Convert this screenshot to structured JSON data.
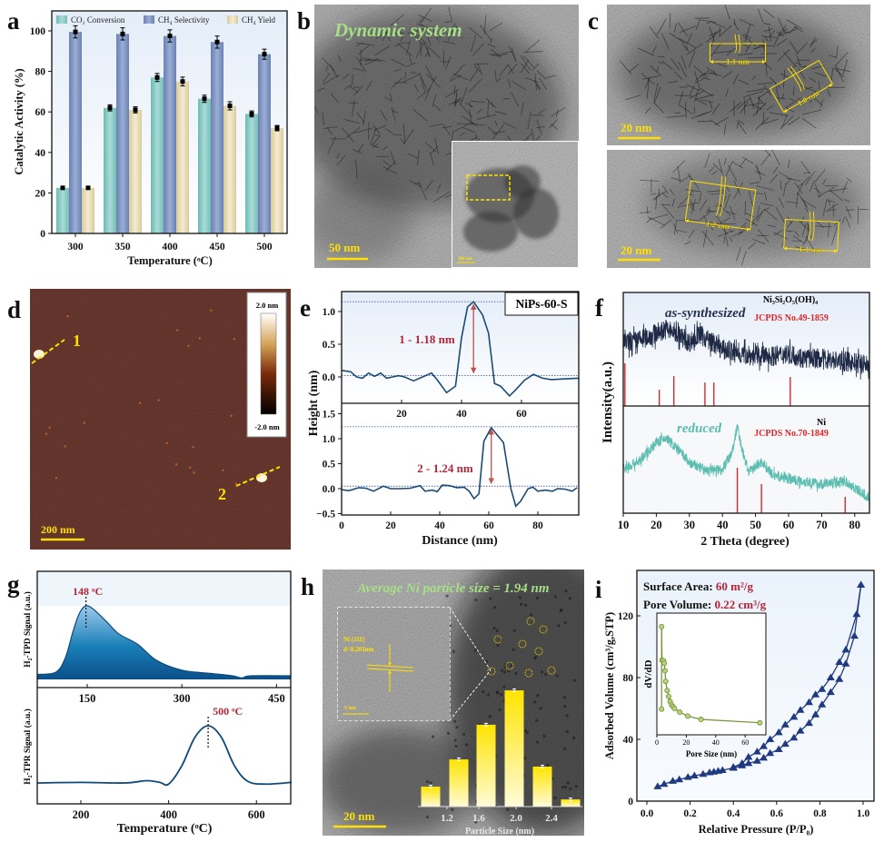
{
  "labels": {
    "a": "a",
    "b": "b",
    "c": "c",
    "d": "d",
    "e": "e",
    "f": "f",
    "g": "g",
    "h": "h",
    "i": "i"
  },
  "images": {
    "b": {
      "title": "Dynamic system",
      "scale_bar": "50 nm",
      "inset_scale_bar": "200 nm"
    },
    "c": {
      "top_scale_bar": "20 nm",
      "bottom_scale_bar": "20 nm",
      "top_spacings": [
        "1.1 nm",
        "1.0 nm"
      ],
      "bottom_spacings": [
        "1.2 nm",
        "1.1 nm"
      ]
    },
    "d": {
      "colorbar_max": "2.0 nm",
      "colorbar_min": "-2.0 nm",
      "line_labels": [
        "1",
        "2"
      ],
      "scale_bar": "200 nm"
    },
    "h": {
      "title": "Average Ni particle size = 1.94 nm",
      "inset_plane": "Ni (111)",
      "inset_d": "d=0.203nm",
      "inset_scale_bar": "5 nm",
      "scale_bar": "20 nm"
    }
  },
  "chart_data": [
    {
      "panel": "a",
      "type": "bar",
      "categories": [
        "300",
        "350",
        "400",
        "450",
        "500"
      ],
      "series": [
        {
          "name": "CO₂ Conversion",
          "values": [
            22.5,
            62,
            77,
            66.5,
            59
          ],
          "errors": [
            0.6,
            1.5,
            2,
            1.8,
            1.5
          ],
          "color": "#8fcfca"
        },
        {
          "name": "CH₄ Selectivity",
          "values": [
            99.5,
            98.5,
            97.5,
            94.5,
            88.5
          ],
          "errors": [
            3,
            3,
            3,
            3,
            2.5
          ],
          "color": "#8196c2"
        },
        {
          "name": "CH₄ Yield",
          "values": [
            22.5,
            61,
            75,
            63,
            52
          ],
          "errors": [
            0.6,
            1.5,
            2.2,
            2,
            1.3
          ],
          "color": "#eadfb8"
        }
      ],
      "xlabel": "Temperature (ᵒC)",
      "ylabel": "Catalytic Activity (%)",
      "ylim": [
        0,
        110
      ],
      "yticks": [
        0,
        20,
        40,
        60,
        80,
        100
      ],
      "legend": "top"
    },
    {
      "panel": "e",
      "type": "line",
      "title": "NiPs-60-S",
      "xlabel": "Distance (nm)",
      "ylabel": "Height (nm)",
      "subplots": [
        {
          "label": "1 - 1.18 nm",
          "xlim": [
            0,
            79
          ],
          "ylim": [
            -0.4,
            1.3
          ],
          "xticks": [
            20,
            40,
            60
          ],
          "yticks": [
            "0.0",
            "0.5",
            "1.0"
          ],
          "ref_lines": [
            0.02,
            1.15
          ],
          "peak_x": 44,
          "x": [
            0,
            3,
            5,
            7,
            9,
            11,
            13,
            15,
            17,
            19,
            21,
            24,
            27,
            30,
            32,
            35,
            38,
            40,
            42,
            44,
            47,
            49,
            51,
            53,
            56,
            58,
            61,
            64,
            67,
            70,
            74,
            79
          ],
          "y": [
            0.1,
            0.08,
            0,
            -0.02,
            0.06,
            0.01,
            0.06,
            -0.02,
            0,
            0.02,
            0,
            -0.06,
            0,
            0.06,
            -0.05,
            -0.24,
            -0.14,
            0.6,
            1.07,
            1.15,
            0.95,
            0.67,
            -0.1,
            -0.14,
            -0.29,
            -0.2,
            -0.05,
            0.04,
            -0.02,
            -0.04,
            -0.03,
            -0.02
          ]
        },
        {
          "label": "2 - 1.24 nm",
          "xlim": [
            0,
            97
          ],
          "ylim": [
            -0.5,
            1.7
          ],
          "xticks": [
            0,
            20,
            40,
            60,
            80
          ],
          "yticks": [
            "−0.5",
            "0.0",
            "0.5",
            "1.0",
            "1.5"
          ],
          "ref_lines": [
            0.05,
            1.24
          ],
          "peak_x": 61,
          "x": [
            0,
            3,
            7,
            10,
            13,
            17,
            20,
            24,
            28,
            32,
            34,
            37,
            39,
            41,
            44,
            47,
            50,
            52,
            54,
            56,
            58,
            61,
            66,
            69,
            71,
            73,
            76,
            78,
            80,
            83,
            86,
            88,
            91,
            94,
            96
          ],
          "y": [
            -0.02,
            -0.04,
            0.02,
            0.01,
            -0.05,
            0.05,
            0,
            0,
            0.01,
            0.06,
            -0.05,
            -0.03,
            -0.06,
            0.07,
            0.06,
            0.02,
            0.03,
            -0.05,
            -0.2,
            -0.1,
            0.95,
            1.22,
            0.92,
            0,
            -0.35,
            -0.25,
            0,
            0.03,
            -0.05,
            -0.03,
            -0.05,
            0,
            -0.01,
            -0.05,
            0.02
          ]
        }
      ]
    },
    {
      "panel": "f",
      "type": "line",
      "xlabel": "2 Theta (degree)",
      "ylabel": "Intensity(a.u.)",
      "xlim": [
        10,
        85
      ],
      "xticks": [
        10,
        20,
        30,
        40,
        50,
        60,
        70,
        80
      ],
      "subplots": [
        {
          "label": "as-synthesized",
          "phase": "Ni₃Si₂O₅(OH)₄",
          "reference": "JCPDS No.49-1859",
          "color": "#1e2a45",
          "profile_x": [
            10,
            15,
            20,
            23,
            26,
            30,
            33,
            36,
            40,
            45,
            50,
            55,
            60,
            65,
            70,
            75,
            80,
            85
          ],
          "profile_y": [
            55,
            58,
            64,
            68,
            64,
            56,
            63,
            58,
            50,
            46,
            44,
            44,
            46,
            42,
            42,
            40,
            38,
            36
          ],
          "ref_peaks_x": [
            10.5,
            20.9,
            25.3,
            34.7,
            37.4,
            60.5
          ],
          "ref_peaks_rel": [
            100,
            38,
            70,
            55,
            55,
            68
          ]
        },
        {
          "label": "reduced",
          "phase": "Ni",
          "reference": "JCPDS No.70-1849",
          "color": "#5bbcb0",
          "profile_x": [
            10,
            15,
            20,
            23,
            27,
            30,
            35,
            40,
            43,
            44.5,
            46,
            48,
            50,
            52,
            55,
            60,
            70,
            77,
            85
          ],
          "profile_y": [
            41,
            49,
            66,
            70,
            58,
            47,
            40,
            41,
            58,
            81,
            58,
            38,
            44,
            48,
            36,
            32,
            27,
            30,
            13
          ],
          "ref_peaks_x": [
            44.5,
            51.8,
            77.1
          ],
          "ref_peaks_rel": [
            100,
            64,
            36
          ]
        }
      ]
    },
    {
      "panel": "g",
      "type": "area",
      "xlabel": "Temperature (ᵒC)",
      "subplots": [
        {
          "ylabel": "H₂-TPD Signal (a.u.)",
          "xlim": [
            71,
            473
          ],
          "xticks": [
            150,
            300,
            450
          ],
          "peak_label": "148 ᵒC",
          "peak_x": 148,
          "x": [
            71,
            100,
            115,
            128,
            138,
            148,
            160,
            180,
            200,
            230,
            260,
            300,
            350,
            380,
            395,
            410,
            473
          ],
          "y": [
            0.02,
            0.05,
            0.25,
            0.65,
            0.9,
            1.0,
            0.95,
            0.78,
            0.6,
            0.45,
            0.22,
            0.08,
            0.03,
            0.0,
            -0.03,
            0.0,
            0.0
          ]
        },
        {
          "ylabel": "H₂-TPR Signal (a.u.)",
          "xlim": [
            100,
            680
          ],
          "xticks": [
            200,
            400,
            600
          ],
          "peak_label": "500 ᵒC",
          "peak_x": 490,
          "x": [
            100,
            200,
            300,
            350,
            380,
            400,
            430,
            460,
            490,
            520,
            550,
            580,
            620,
            680
          ],
          "y": [
            0,
            0.01,
            0,
            0.04,
            0.01,
            -0.02,
            0.3,
            0.8,
            1.0,
            0.8,
            0.3,
            0.03,
            -0.02,
            0.01
          ]
        }
      ]
    },
    {
      "panel": "h",
      "type": "bar",
      "xlabel": "Particle Size (nm)",
      "xticks": [
        "1.2",
        "1.6",
        "2.0",
        "2.4"
      ],
      "bins": [
        1.1,
        1.3,
        1.6,
        1.9,
        2.2,
        2.5
      ],
      "values": [
        6.4,
        15.1,
        26.2,
        37.2,
        12.8,
        2.3
      ]
    },
    {
      "panel": "i",
      "type": "scatter",
      "xlabel": "Relative Pressure (P/P₀)",
      "ylabel": "Adsorbed Volume (cm³/g,STP)",
      "xlim": [
        -0.05,
        1.05
      ],
      "ylim": [
        0,
        149
      ],
      "xticks": [
        "0.0",
        "0.2",
        "0.4",
        "0.6",
        "0.8",
        "1.0"
      ],
      "yticks": [
        0,
        40,
        80,
        120
      ],
      "surface_area_label": "Surface Area: ",
      "surface_area": "60 m²/g",
      "pore_volume_label": "Pore Volume: ",
      "pore_volume": "0.22 cm³/g",
      "series": [
        {
          "name": "adsorption",
          "x": [
            0.05,
            0.08,
            0.12,
            0.15,
            0.19,
            0.22,
            0.26,
            0.29,
            0.31,
            0.33,
            0.35,
            0.4,
            0.44,
            0.47,
            0.51,
            0.54,
            0.57,
            0.61,
            0.64,
            0.68,
            0.71,
            0.75,
            0.78,
            0.81,
            0.85,
            0.89,
            0.92,
            0.96,
            0.99
          ],
          "y": [
            9.5,
            11,
            13,
            14,
            15.5,
            16.5,
            17.5,
            18.5,
            19,
            19.5,
            20,
            21.5,
            23,
            24.5,
            26,
            28,
            31,
            33.5,
            37,
            41,
            45.5,
            50.5,
            56,
            62.5,
            70.5,
            79,
            89,
            107,
            140
          ]
        },
        {
          "name": "desorption",
          "x": [
            0.99,
            0.97,
            0.92,
            0.89,
            0.85,
            0.81,
            0.78,
            0.75,
            0.71,
            0.68,
            0.64,
            0.61,
            0.57,
            0.54,
            0.51,
            0.47,
            0.44,
            0.4
          ],
          "y": [
            140,
            121,
            98,
            90,
            80,
            72.5,
            69,
            64,
            59,
            54.5,
            49.5,
            44.5,
            40,
            35.5,
            32,
            28.5,
            24.5,
            22
          ]
        }
      ],
      "inset": {
        "xlabel": "Pore Size (nm)",
        "ylabel": "dV/dD",
        "xticks": [
          0,
          20,
          40,
          60
        ],
        "xlim": [
          0,
          74
        ],
        "x": [
          3.2,
          3.2,
          3.5,
          4.5,
          5,
          5.5,
          6,
          7,
          8,
          9,
          10,
          11,
          12,
          15.5,
          21,
          30,
          70
        ],
        "y": [
          0.78,
          3.51,
          2.4,
          2.38,
          2.3,
          2.05,
          1.7,
          1.4,
          1.2,
          1.03,
          0.92,
          0.86,
          0.8,
          0.68,
          0.55,
          0.44,
          0.33
        ]
      }
    }
  ]
}
